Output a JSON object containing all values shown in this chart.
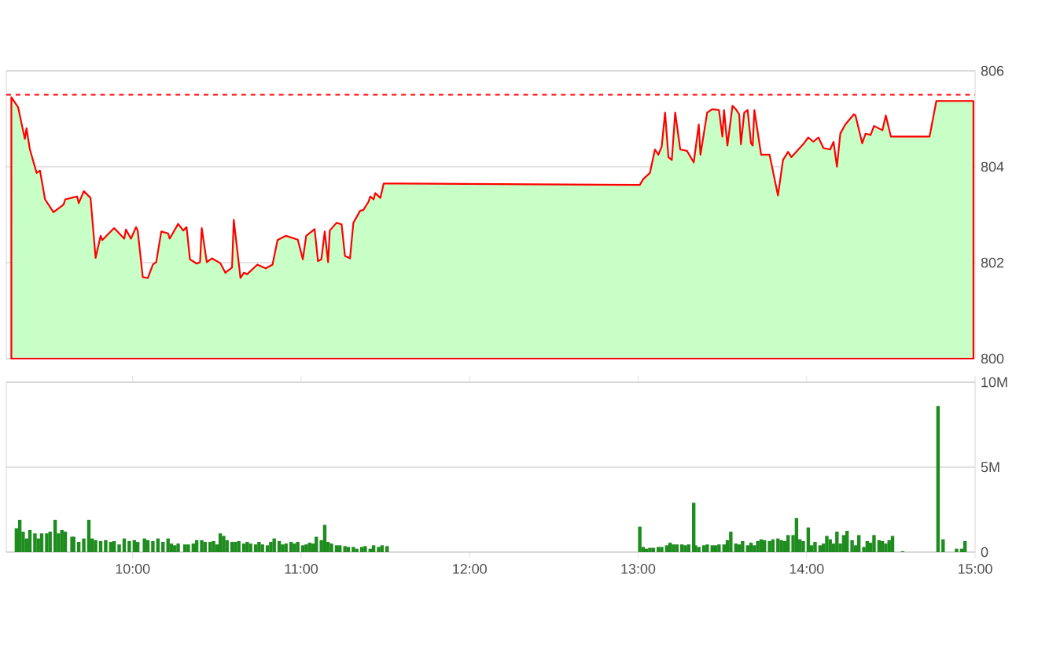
{
  "chart_data": [
    {
      "type": "area",
      "color": "#ff0000",
      "xlim": [
        9.25,
        15
      ],
      "ylim": [
        800,
        806
      ],
      "yticks": [
        800,
        802,
        804,
        806
      ],
      "grid": "y",
      "tick_labels": "y",
      "ref_lines": [
        {
          "axis": "y",
          "value": 805.5,
          "color": "#ff0000",
          "line_style": "dashed"
        }
      ],
      "x": [
        9.28,
        9.32,
        9.36,
        9.37,
        9.39,
        9.43,
        9.45,
        9.48,
        9.53,
        9.59,
        9.6,
        9.67,
        9.68,
        9.71,
        9.75,
        9.78,
        9.81,
        9.82,
        9.89,
        9.95,
        9.96,
        9.99,
        10.02,
        10.03,
        10.06,
        10.09,
        10.12,
        10.14,
        10.17,
        10.21,
        10.22,
        10.27,
        10.3,
        10.32,
        10.34,
        10.38,
        10.4,
        10.41,
        10.44,
        10.47,
        10.52,
        10.55,
        10.59,
        10.6,
        10.64,
        10.66,
        10.68,
        10.74,
        10.79,
        10.83,
        10.86,
        10.91,
        10.98,
        11.01,
        11.03,
        11.08,
        11.1,
        11.12,
        11.14,
        11.16,
        11.17,
        11.21,
        11.24,
        11.26,
        11.29,
        11.31,
        11.35,
        11.37,
        11.4,
        11.41,
        11.43,
        11.44,
        11.47,
        11.49,
        13.01,
        13.03,
        13.07,
        13.1,
        13.12,
        13.14,
        13.16,
        13.18,
        13.2,
        13.22,
        13.25,
        13.29,
        13.33,
        13.36,
        13.37,
        13.41,
        13.44,
        13.48,
        13.5,
        13.51,
        13.53,
        13.56,
        13.58,
        13.6,
        13.61,
        13.63,
        13.65,
        13.67,
        13.68,
        13.69,
        13.73,
        13.78,
        13.83,
        13.86,
        13.89,
        13.91,
        13.98,
        14.01,
        14.04,
        14.07,
        14.1,
        14.14,
        14.16,
        14.18,
        14.2,
        14.23,
        14.28,
        14.29,
        14.33,
        14.35,
        14.38,
        14.4,
        14.45,
        14.47,
        14.5,
        14.73,
        14.77,
        14.99
      ],
      "values": [
        805.45,
        805.24,
        804.58,
        804.8,
        804.36,
        803.87,
        803.92,
        803.32,
        803.05,
        803.21,
        803.32,
        803.38,
        803.24,
        803.49,
        803.35,
        802.1,
        802.56,
        802.47,
        802.72,
        802.5,
        802.69,
        802.5,
        802.74,
        802.67,
        801.7,
        801.68,
        801.96,
        802.01,
        802.65,
        802.61,
        802.5,
        802.81,
        802.67,
        802.74,
        802.07,
        801.98,
        802.01,
        802.72,
        802.01,
        802.09,
        801.99,
        801.79,
        801.9,
        802.89,
        801.68,
        801.79,
        801.76,
        801.96,
        801.88,
        801.96,
        802.47,
        802.56,
        802.48,
        802.07,
        802.56,
        802.7,
        802.03,
        802.07,
        802.65,
        802.01,
        802.67,
        802.83,
        802.8,
        802.14,
        802.09,
        802.83,
        803.08,
        803.1,
        803.27,
        803.38,
        803.32,
        803.45,
        803.35,
        803.65,
        803.62,
        803.74,
        803.87,
        804.36,
        804.25,
        804.42,
        805.13,
        804.2,
        804.14,
        805.13,
        804.36,
        804.33,
        804.09,
        804.88,
        804.25,
        805.13,
        805.2,
        805.18,
        804.63,
        805.18,
        804.44,
        805.27,
        805.2,
        805.09,
        804.47,
        805.13,
        805.18,
        804.49,
        804.44,
        805.18,
        804.25,
        804.25,
        803.4,
        804.14,
        804.31,
        804.2,
        804.47,
        804.61,
        804.52,
        804.61,
        804.39,
        804.36,
        804.52,
        804.0,
        804.69,
        804.88,
        805.09,
        805.07,
        804.49,
        804.69,
        804.66,
        804.85,
        804.76,
        805.07,
        804.63,
        804.63,
        805.37,
        805.37
      ]
    },
    {
      "type": "bar",
      "color": "#1e8c1e",
      "xlim": [
        9.25,
        15
      ],
      "ylim": [
        0,
        10
      ],
      "yticks": [
        0,
        {
          "value": 5,
          "label": "5M"
        },
        {
          "value": 10,
          "label": "10M"
        }
      ],
      "grid": "y",
      "xticks": [
        {
          "value": 10,
          "label": "10:00"
        },
        {
          "value": 11,
          "label": "11:00"
        },
        {
          "value": 12,
          "label": "12:00"
        },
        {
          "value": 13,
          "label": "13:00"
        },
        {
          "value": 14,
          "label": "14:00"
        },
        {
          "value": 15,
          "label": "15:00"
        }
      ],
      "x": [
        9.31,
        9.33,
        9.35,
        9.37,
        9.39,
        9.42,
        9.44,
        9.46,
        9.49,
        9.51,
        9.54,
        9.56,
        9.58,
        9.6,
        9.64,
        9.65,
        9.68,
        9.71,
        9.74,
        9.76,
        9.78,
        9.81,
        9.84,
        9.87,
        9.89,
        9.92,
        9.95,
        9.98,
        10.01,
        10.03,
        10.07,
        10.09,
        10.12,
        10.15,
        10.18,
        10.21,
        10.23,
        10.25,
        10.27,
        10.31,
        10.33,
        10.36,
        10.38,
        10.41,
        10.43,
        10.46,
        10.48,
        10.5,
        10.52,
        10.54,
        10.56,
        10.59,
        10.61,
        10.63,
        10.66,
        10.68,
        10.7,
        10.73,
        10.75,
        10.77,
        10.8,
        10.82,
        10.84,
        10.87,
        10.89,
        10.91,
        10.94,
        10.96,
        10.98,
        11.01,
        11.03,
        11.05,
        11.07,
        11.09,
        11.12,
        11.14,
        11.16,
        11.18,
        11.21,
        11.23,
        11.26,
        11.28,
        11.31,
        11.33,
        11.36,
        11.38,
        11.41,
        11.43,
        11.46,
        11.48,
        11.51,
        13.01,
        13.03,
        13.05,
        13.07,
        13.09,
        13.12,
        13.14,
        13.17,
        13.19,
        13.21,
        13.23,
        13.26,
        13.28,
        13.3,
        13.33,
        13.34,
        13.36,
        13.39,
        13.41,
        13.44,
        13.46,
        13.48,
        13.51,
        13.53,
        13.55,
        13.58,
        13.6,
        13.62,
        13.65,
        13.67,
        13.69,
        13.71,
        13.73,
        13.75,
        13.78,
        13.8,
        13.83,
        13.85,
        13.87,
        13.89,
        13.92,
        13.94,
        13.96,
        13.98,
        14.01,
        14.03,
        14.05,
        14.08,
        14.1,
        14.12,
        14.14,
        14.16,
        14.18,
        14.2,
        14.22,
        14.24,
        14.27,
        14.29,
        14.31,
        14.34,
        14.36,
        14.38,
        14.4,
        14.43,
        14.45,
        14.47,
        14.49,
        14.51,
        14.57,
        14.78,
        14.81,
        14.89,
        14.92,
        14.94
      ],
      "values": [
        1.4,
        1.9,
        1.2,
        0.8,
        1.3,
        1.1,
        0.8,
        1.1,
        1.1,
        1.2,
        1.9,
        1.1,
        1.3,
        1.2,
        0.9,
        0.9,
        0.6,
        0.8,
        1.9,
        0.8,
        0.7,
        0.65,
        0.7,
        0.6,
        0.65,
        0.45,
        0.8,
        0.65,
        0.7,
        0.6,
        0.8,
        0.7,
        0.65,
        0.8,
        0.6,
        0.8,
        0.5,
        0.4,
        0.5,
        0.45,
        0.45,
        0.5,
        0.7,
        0.7,
        0.6,
        0.6,
        0.65,
        0.45,
        1.1,
        0.95,
        0.7,
        0.6,
        0.6,
        0.65,
        0.5,
        0.6,
        0.5,
        0.45,
        0.6,
        0.45,
        0.4,
        0.6,
        0.8,
        0.65,
        0.45,
        0.5,
        0.6,
        0.5,
        0.6,
        0.4,
        0.45,
        0.55,
        0.5,
        0.9,
        0.7,
        1.6,
        0.6,
        0.5,
        0.4,
        0.4,
        0.35,
        0.3,
        0.3,
        0.2,
        0.3,
        0.35,
        0.2,
        0.4,
        0.3,
        0.4,
        0.35,
        1.5,
        0.3,
        0.2,
        0.25,
        0.25,
        0.3,
        0.3,
        0.4,
        0.55,
        0.45,
        0.45,
        0.45,
        0.4,
        0.45,
        2.9,
        0.4,
        0.3,
        0.4,
        0.45,
        0.4,
        0.4,
        0.45,
        0.45,
        0.7,
        1.2,
        0.5,
        0.45,
        0.65,
        0.4,
        0.55,
        0.4,
        0.65,
        0.75,
        0.7,
        0.65,
        0.75,
        0.8,
        0.7,
        0.65,
        1.0,
        1.0,
        2.0,
        0.75,
        0.65,
        1.45,
        0.4,
        0.6,
        0.4,
        0.5,
        0.95,
        0.75,
        0.5,
        1.2,
        0.5,
        1.0,
        1.25,
        0.7,
        0.4,
        1.0,
        0.3,
        0.65,
        0.55,
        1.0,
        0.7,
        0.65,
        0.5,
        0.7,
        0.95,
        0.05,
        8.6,
        0.75,
        0.2,
        0.2,
        0.65
      ]
    }
  ]
}
